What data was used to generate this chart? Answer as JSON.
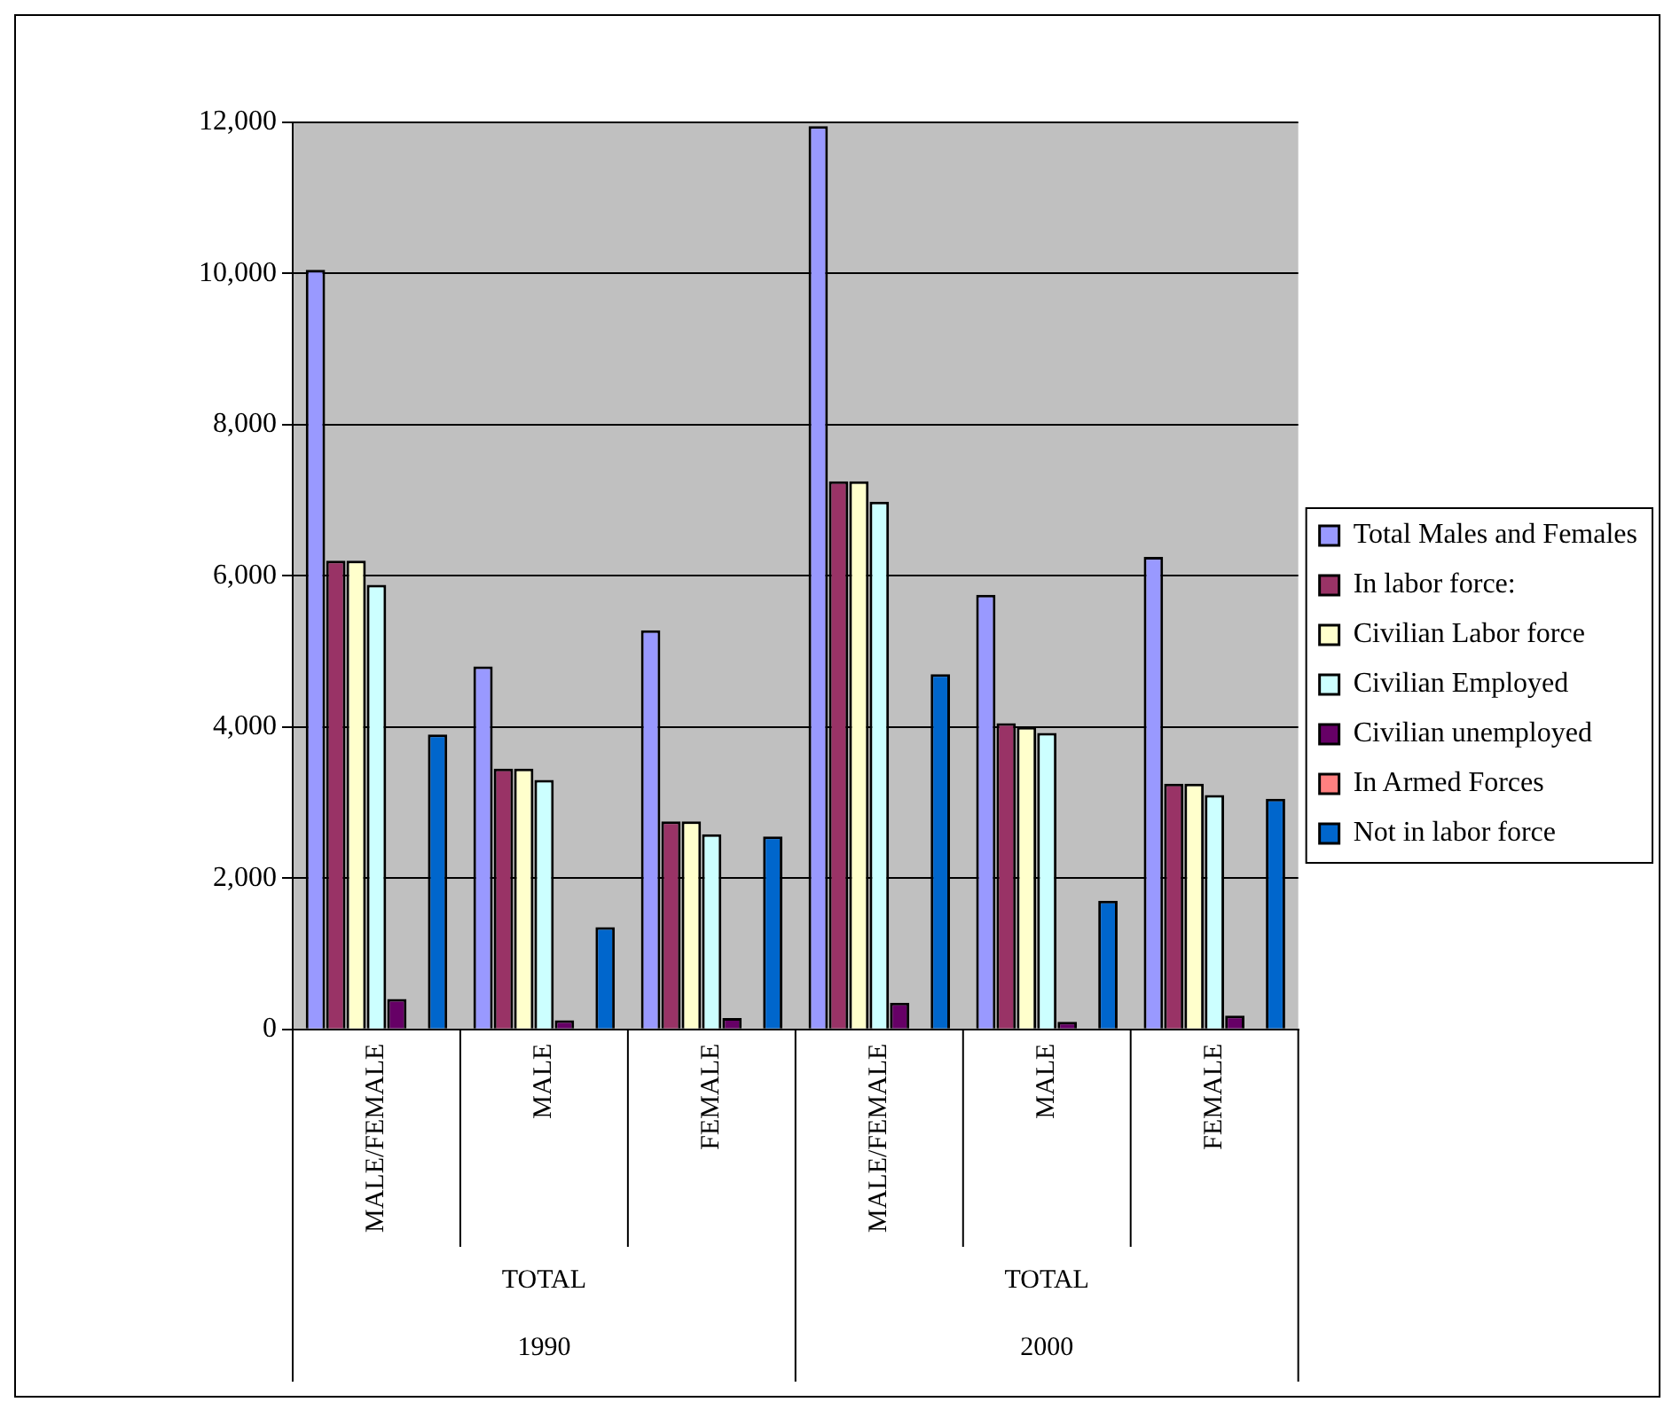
{
  "chart_data": {
    "type": "bar",
    "categories": [
      "MALE/FEMALE",
      "MALE",
      "FEMALE",
      "MALE/FEMALE",
      "MALE",
      "FEMALE"
    ],
    "series": [
      {
        "name": "Total Males and Females",
        "color": "#9999ff",
        "values": [
          10050,
          4800,
          5280,
          11950,
          5750,
          6250
        ]
      },
      {
        "name": "In labor force:",
        "color": "#993366",
        "values": [
          6200,
          3450,
          2750,
          7250,
          4050,
          3250
        ]
      },
      {
        "name": "Civilian Labor force",
        "color": "#ffffcc",
        "values": [
          6200,
          3450,
          2750,
          7250,
          4000,
          3250
        ]
      },
      {
        "name": "Civilian Employed",
        "color": "#ccffff",
        "values": [
          5880,
          3300,
          2580,
          6980,
          3920,
          3100
        ]
      },
      {
        "name": "Civilian unemployed",
        "color": "#660066",
        "values": [
          400,
          120,
          150,
          350,
          100,
          180
        ]
      },
      {
        "name": "In Armed Forces",
        "color": "#ff8080",
        "values": [
          0,
          0,
          0,
          0,
          0,
          0
        ]
      },
      {
        "name": "Not in labor force",
        "color": "#0066cc",
        "values": [
          3900,
          1350,
          2550,
          4700,
          1700,
          3050
        ]
      }
    ],
    "ylim": [
      0,
      12000
    ],
    "yticks": [
      0,
      {
        "value": 2000,
        "label": "2,000"
      },
      {
        "value": 4000,
        "label": "4,000"
      },
      {
        "value": 6000,
        "label": "6,000"
      },
      {
        "value": 8000,
        "label": "8,000"
      },
      {
        "value": 10000,
        "label": "10,000"
      },
      {
        "value": 12000,
        "label": "12,000"
      }
    ],
    "grid": "y",
    "legend": "right",
    "annotations": [
      "TOTAL",
      "1990",
      "TOTAL",
      "2000"
    ]
  }
}
